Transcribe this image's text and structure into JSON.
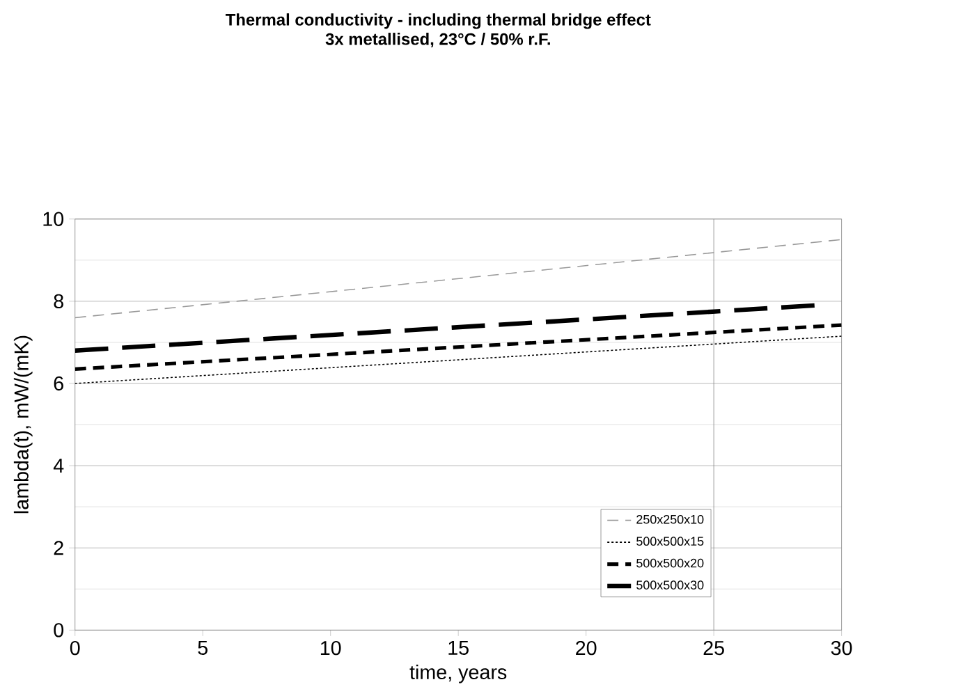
{
  "chart_data": {
    "type": "line",
    "title": "Thermal conductivity -  including thermal bridge effect",
    "subtitle": "3x metallised,  23°C / 50% r.F.",
    "xlabel": "time, years",
    "ylabel": "lambda(t), mW/(mK)",
    "x": [
      0,
      30
    ],
    "series": [
      {
        "name": "250x250x10",
        "color": "#999999",
        "line_style": "dashed",
        "values": [
          7.6,
          9.5
        ]
      },
      {
        "name": "500x500x15",
        "color": "#000000",
        "line_style": "dotted",
        "values": [
          6.0,
          7.15
        ]
      },
      {
        "name": "500x500x20",
        "color": "#000000",
        "line_style": "dashed",
        "values": [
          6.35,
          7.42
        ]
      },
      {
        "name": "500x500x30",
        "color": "#000000",
        "line_style": "dashed",
        "x": [
          0,
          29
        ],
        "values": [
          6.8,
          7.9
        ]
      }
    ],
    "xlim": [
      0,
      30
    ],
    "ylim": [
      0,
      10
    ],
    "xticks": [
      0,
      5,
      10,
      15,
      20,
      25,
      30
    ],
    "yticks": [
      0,
      2,
      4,
      6,
      8,
      10
    ],
    "grid": "y",
    "legend": "bottom right",
    "marker": "none",
    "ref_lines": [
      {
        "axis": "x",
        "value": 25,
        "color": "#808080"
      }
    ]
  }
}
